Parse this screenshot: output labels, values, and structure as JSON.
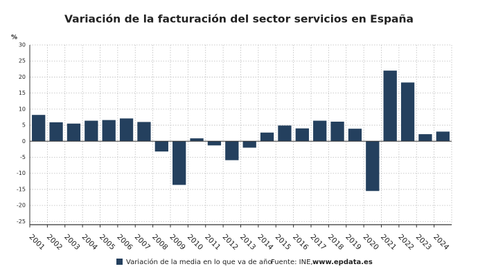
{
  "chart_data": {
    "type": "bar",
    "title": "Variación de la facturación del sector servicios en España",
    "y_unit": "%",
    "categories": [
      "2001",
      "2002",
      "2003",
      "2004",
      "2005",
      "2006",
      "2007",
      "2008",
      "2009",
      "2010",
      "2011",
      "2012",
      "2013",
      "2014",
      "2015",
      "2016",
      "2017",
      "2018",
      "2019",
      "2020",
      "2021",
      "2022",
      "2023",
      "2024"
    ],
    "series": [
      {
        "name": "Variación de la media en lo que va de año",
        "color": "#24405e",
        "values": [
          8.2,
          5.9,
          5.5,
          6.4,
          6.6,
          7.1,
          6.0,
          -3.2,
          -13.6,
          0.9,
          -1.3,
          -5.9,
          -2.0,
          2.7,
          4.9,
          4.0,
          6.4,
          6.1,
          3.9,
          -15.5,
          22.0,
          18.3,
          2.2,
          3.0
        ]
      }
    ],
    "ylim": [
      -26,
      30
    ],
    "yticks": [
      -25,
      -20,
      -15,
      -10,
      -5,
      0,
      5,
      10,
      15,
      20,
      25,
      30
    ],
    "grid": true,
    "source_label": "Fuente: INE,",
    "source_site": "www.epdata.es"
  }
}
